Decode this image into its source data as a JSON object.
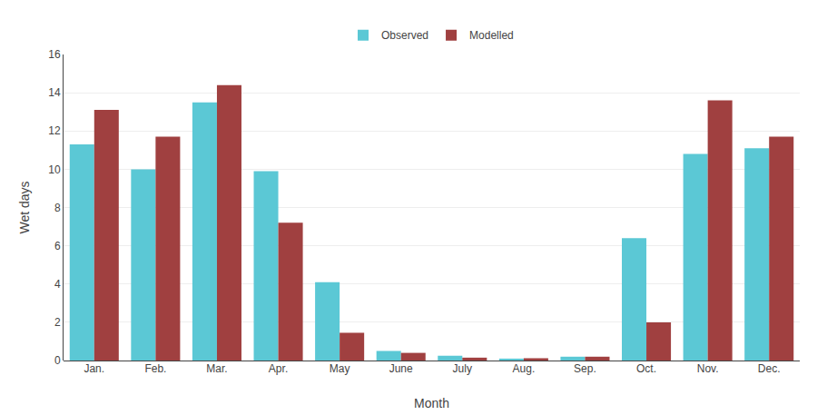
{
  "chart_data": {
    "type": "bar",
    "categories": [
      "Jan.",
      "Feb.",
      "Mar.",
      "Apr.",
      "May",
      "June",
      "July",
      "Aug.",
      "Sep.",
      "Oct.",
      "Nov.",
      "Dec."
    ],
    "series": [
      {
        "name": "Observed",
        "color": "#5BC8D5",
        "values": [
          11.3,
          10.0,
          13.5,
          9.9,
          4.1,
          0.5,
          0.25,
          0.1,
          0.2,
          6.4,
          10.8,
          11.1
        ]
      },
      {
        "name": "Modelled",
        "color": "#A04040",
        "values": [
          13.1,
          11.7,
          14.4,
          7.2,
          1.45,
          0.4,
          0.15,
          0.12,
          0.2,
          2.0,
          13.6,
          11.7
        ]
      }
    ],
    "xlabel": "Month",
    "ylabel": "Wet days",
    "ylim": [
      0,
      16
    ],
    "yticks": [
      0,
      2,
      4,
      6,
      8,
      10,
      12,
      14,
      16
    ],
    "grid": true,
    "legend": "top"
  }
}
